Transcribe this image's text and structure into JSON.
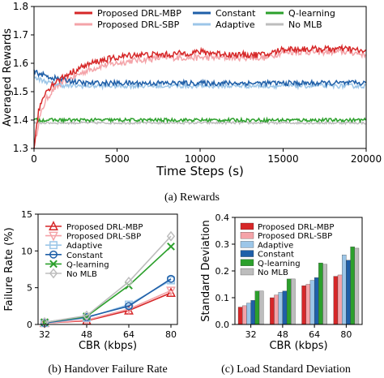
{
  "figure": {
    "captions": [
      "(a)  Rewards",
      "(b)  Handover Failure Rate",
      "(c)  Load Standard Deviation"
    ]
  },
  "colors": {
    "Proposed DRL-MBP": "#d62728",
    "Proposed DRL-SBP": "#f4a3a8",
    "Constant": "#1f5fa8",
    "Adaptive": "#9cc6e8",
    "Q-learning": "#2ca02c",
    "No MLB": "#bdbdbd"
  },
  "chart_data": [
    {
      "type": "line",
      "xlabel": "Time Steps (s)",
      "ylabel": "Averaged Rewards",
      "xlim": [
        0,
        20000
      ],
      "ylim": [
        1.3,
        1.8
      ],
      "xticks": [
        0,
        5000,
        10000,
        15000,
        20000
      ],
      "yticks": [
        1.3,
        1.4,
        1.5,
        1.6,
        1.7,
        1.8
      ],
      "grid": false,
      "legend_position": "top",
      "series": [
        {
          "name": "Proposed DRL-MBP",
          "x": [
            0,
            300,
            700,
            1200,
            2000,
            3000,
            4000,
            5000,
            6000,
            8000,
            10000,
            12000,
            14000,
            15000,
            17000,
            19000,
            20000
          ],
          "y": [
            1.3,
            1.44,
            1.5,
            1.53,
            1.56,
            1.59,
            1.61,
            1.62,
            1.63,
            1.63,
            1.64,
            1.63,
            1.63,
            1.65,
            1.65,
            1.65,
            1.64
          ]
        },
        {
          "name": "Proposed DRL-SBP",
          "x": [
            0,
            300,
            700,
            1200,
            2000,
            3000,
            4000,
            5000,
            6000,
            8000,
            10000,
            12000,
            14000,
            15000,
            17000,
            19000,
            20000
          ],
          "y": [
            1.3,
            1.4,
            1.47,
            1.51,
            1.54,
            1.57,
            1.59,
            1.6,
            1.61,
            1.62,
            1.62,
            1.62,
            1.62,
            1.64,
            1.64,
            1.64,
            1.63
          ]
        },
        {
          "name": "Constant",
          "x": [
            0,
            500,
            1000,
            2000,
            3000,
            4000,
            6000,
            8000,
            10000,
            12000,
            14000,
            16000,
            18000,
            20000
          ],
          "y": [
            1.57,
            1.56,
            1.55,
            1.54,
            1.53,
            1.53,
            1.53,
            1.53,
            1.53,
            1.53,
            1.53,
            1.53,
            1.53,
            1.53
          ]
        },
        {
          "name": "Adaptive",
          "x": [
            0,
            500,
            1000,
            2000,
            3000,
            4000,
            6000,
            8000,
            10000,
            12000,
            14000,
            16000,
            18000,
            20000
          ],
          "y": [
            1.55,
            1.54,
            1.53,
            1.52,
            1.52,
            1.52,
            1.52,
            1.52,
            1.52,
            1.52,
            1.52,
            1.52,
            1.52,
            1.52
          ]
        },
        {
          "name": "Q-learning",
          "x": [
            0,
            500,
            1000,
            2000,
            4000,
            6000,
            8000,
            10000,
            12000,
            14000,
            16000,
            18000,
            20000
          ],
          "y": [
            1.4,
            1.4,
            1.4,
            1.4,
            1.4,
            1.4,
            1.4,
            1.4,
            1.4,
            1.4,
            1.4,
            1.4,
            1.4
          ]
        },
        {
          "name": "No MLB",
          "x": [
            0,
            500,
            1000,
            2000,
            4000,
            6000,
            8000,
            10000,
            12000,
            14000,
            16000,
            18000,
            20000
          ],
          "y": [
            1.39,
            1.39,
            1.39,
            1.39,
            1.39,
            1.39,
            1.39,
            1.39,
            1.39,
            1.39,
            1.39,
            1.39,
            1.39
          ]
        }
      ]
    },
    {
      "type": "line",
      "xlabel": "CBR (kbps)",
      "ylabel": "Failure Rate (%)",
      "categories": [
        "32",
        "48",
        "64",
        "80"
      ],
      "ylim": [
        0,
        15
      ],
      "yticks": [
        0,
        5,
        10,
        15
      ],
      "grid": false,
      "legend_position": "top-left",
      "series": [
        {
          "name": "Proposed DRL-MBP",
          "marker": "triangle-up",
          "values": [
            0.2,
            0.5,
            1.9,
            4.3
          ]
        },
        {
          "name": "Proposed DRL-SBP",
          "marker": "triangle-down",
          "values": [
            0.2,
            0.6,
            2.1,
            4.6
          ]
        },
        {
          "name": "Adaptive",
          "marker": "square",
          "values": [
            0.2,
            0.9,
            2.7,
            6.0
          ]
        },
        {
          "name": "Constant",
          "marker": "circle",
          "values": [
            0.2,
            1.0,
            2.5,
            6.2
          ]
        },
        {
          "name": "Q-learning",
          "marker": "x",
          "values": [
            0.3,
            1.1,
            5.3,
            10.6
          ]
        },
        {
          "name": "No MLB",
          "marker": "diamond",
          "values": [
            0.3,
            1.2,
            5.8,
            12.0
          ]
        }
      ]
    },
    {
      "type": "bar",
      "xlabel": "CBR (kbps)",
      "ylabel": "Standard Deviation",
      "categories": [
        "32",
        "48",
        "64",
        "80"
      ],
      "ylim": [
        0,
        0.4
      ],
      "yticks": [
        0.0,
        0.1,
        0.2,
        0.3,
        0.4
      ],
      "grid": false,
      "legend_position": "top-left",
      "series": [
        {
          "name": "Proposed DRL-MBP",
          "values": [
            0.065,
            0.1,
            0.145,
            0.18
          ]
        },
        {
          "name": "Proposed DRL-SBP",
          "values": [
            0.07,
            0.11,
            0.15,
            0.185
          ]
        },
        {
          "name": "Adaptive",
          "values": [
            0.08,
            0.12,
            0.165,
            0.26
          ]
        },
        {
          "name": "Constant",
          "values": [
            0.09,
            0.125,
            0.175,
            0.24
          ]
        },
        {
          "name": "Q-learning",
          "values": [
            0.125,
            0.17,
            0.23,
            0.29
          ]
        },
        {
          "name": "No MLB",
          "values": [
            0.125,
            0.17,
            0.225,
            0.285
          ]
        }
      ]
    }
  ]
}
